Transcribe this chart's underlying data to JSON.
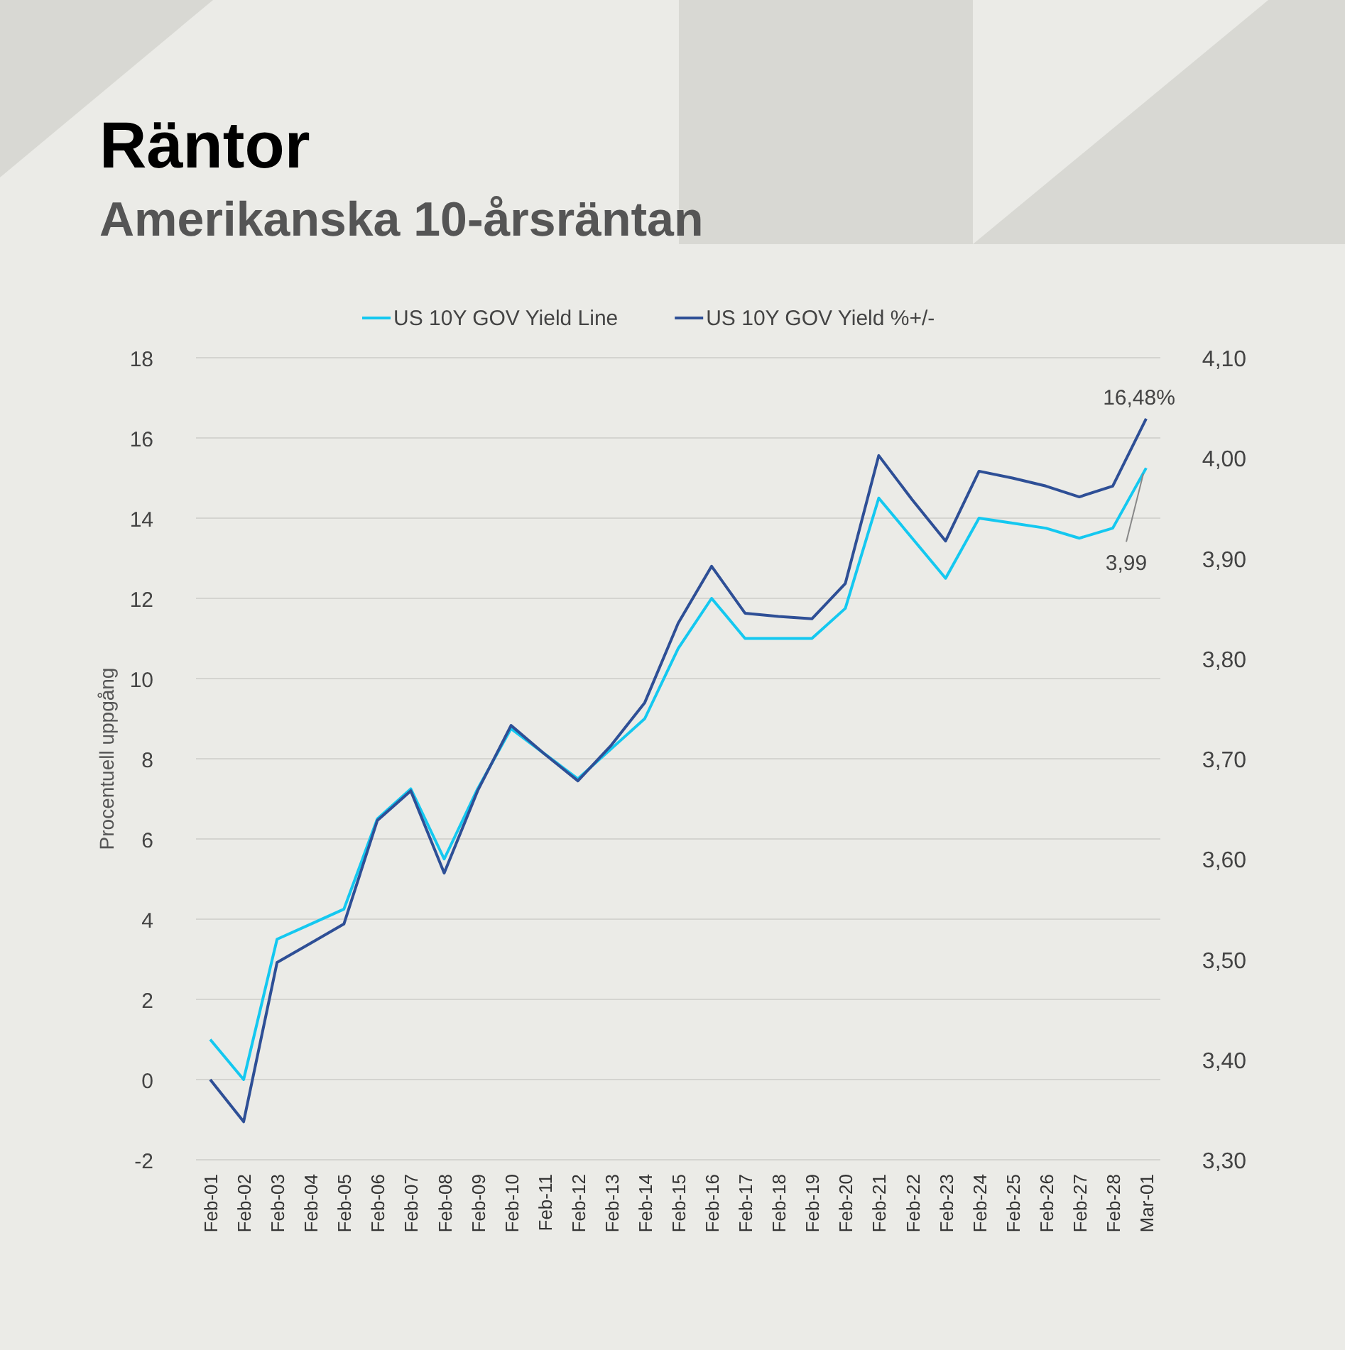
{
  "chart_data": {
    "type": "line",
    "title": "Räntor",
    "subtitle": "Amerikanska 10-årsräntan",
    "ylabel": "Procentuell uppgång",
    "categories": [
      "Feb-01",
      "Feb-02",
      "Feb-03",
      "Feb-04",
      "Feb-05",
      "Feb-06",
      "Feb-07",
      "Feb-08",
      "Feb-09",
      "Feb-10",
      "Feb-11",
      "Feb-12",
      "Feb-13",
      "Feb-14",
      "Feb-15",
      "Feb-16",
      "Feb-17",
      "Feb-18",
      "Feb-19",
      "Feb-20",
      "Feb-21",
      "Feb-22",
      "Feb-23",
      "Feb-24",
      "Feb-25",
      "Feb-26",
      "Feb-27",
      "Feb-28",
      "Mar-01"
    ],
    "series": [
      {
        "name": "US 10Y GOV Yield Line",
        "color": "#14c8f0",
        "axis": "y2",
        "values": [
          3.42,
          3.38,
          3.52,
          3.535,
          3.55,
          3.64,
          3.67,
          3.6,
          3.67,
          3.73,
          3.705,
          3.68,
          3.71,
          3.74,
          3.81,
          3.86,
          3.82,
          3.82,
          3.82,
          3.85,
          3.96,
          3.92,
          3.88,
          3.94,
          3.935,
          3.93,
          3.92,
          3.93,
          3.99
        ],
        "value_labels": [
          null,
          null,
          null,
          null,
          null,
          null,
          null,
          null,
          null,
          null,
          null,
          null,
          null,
          null,
          null,
          null,
          null,
          null,
          null,
          null,
          null,
          null,
          null,
          null,
          null,
          null,
          null,
          null,
          "3,99"
        ]
      },
      {
        "name": "US 10Y GOV Yield %+/-",
        "color": "#2e4f96",
        "values": [
          0,
          -1.05,
          2.92,
          3.4,
          3.88,
          6.46,
          7.2,
          5.15,
          7.2,
          8.83,
          8.12,
          7.45,
          8.34,
          9.4,
          11.38,
          12.8,
          11.63,
          11.55,
          11.49,
          12.37,
          15.56,
          14.46,
          13.43,
          15.17,
          15.0,
          14.8,
          14.53,
          14.8,
          16.48
        ],
        "value_labels": [
          null,
          null,
          null,
          null,
          null,
          null,
          null,
          null,
          null,
          null,
          null,
          null,
          null,
          null,
          null,
          null,
          null,
          null,
          null,
          null,
          null,
          null,
          null,
          null,
          null,
          null,
          null,
          null,
          "16,48%"
        ]
      }
    ],
    "ylim": [
      -2,
      18
    ],
    "yticks": [
      -2,
      0,
      2,
      4,
      6,
      8,
      10,
      12,
      14,
      16,
      18
    ],
    "y2lim": [
      3.3,
      4.1
    ],
    "y2ticks": [
      {
        "value": 3.3,
        "label": "3,30"
      },
      {
        "value": 3.4,
        "label": "3,40"
      },
      {
        "value": 3.5,
        "label": "3,50"
      },
      {
        "value": 3.6,
        "label": "3,60"
      },
      {
        "value": 3.7,
        "label": "3,70"
      },
      {
        "value": 3.8,
        "label": "3,80"
      },
      {
        "value": 3.9,
        "label": "3,90"
      },
      {
        "value": 4.0,
        "label": "4,00"
      },
      {
        "value": 4.1,
        "label": "4,10"
      }
    ],
    "grid": "y",
    "legend": "top",
    "marker": "none",
    "line_style": "solid"
  }
}
